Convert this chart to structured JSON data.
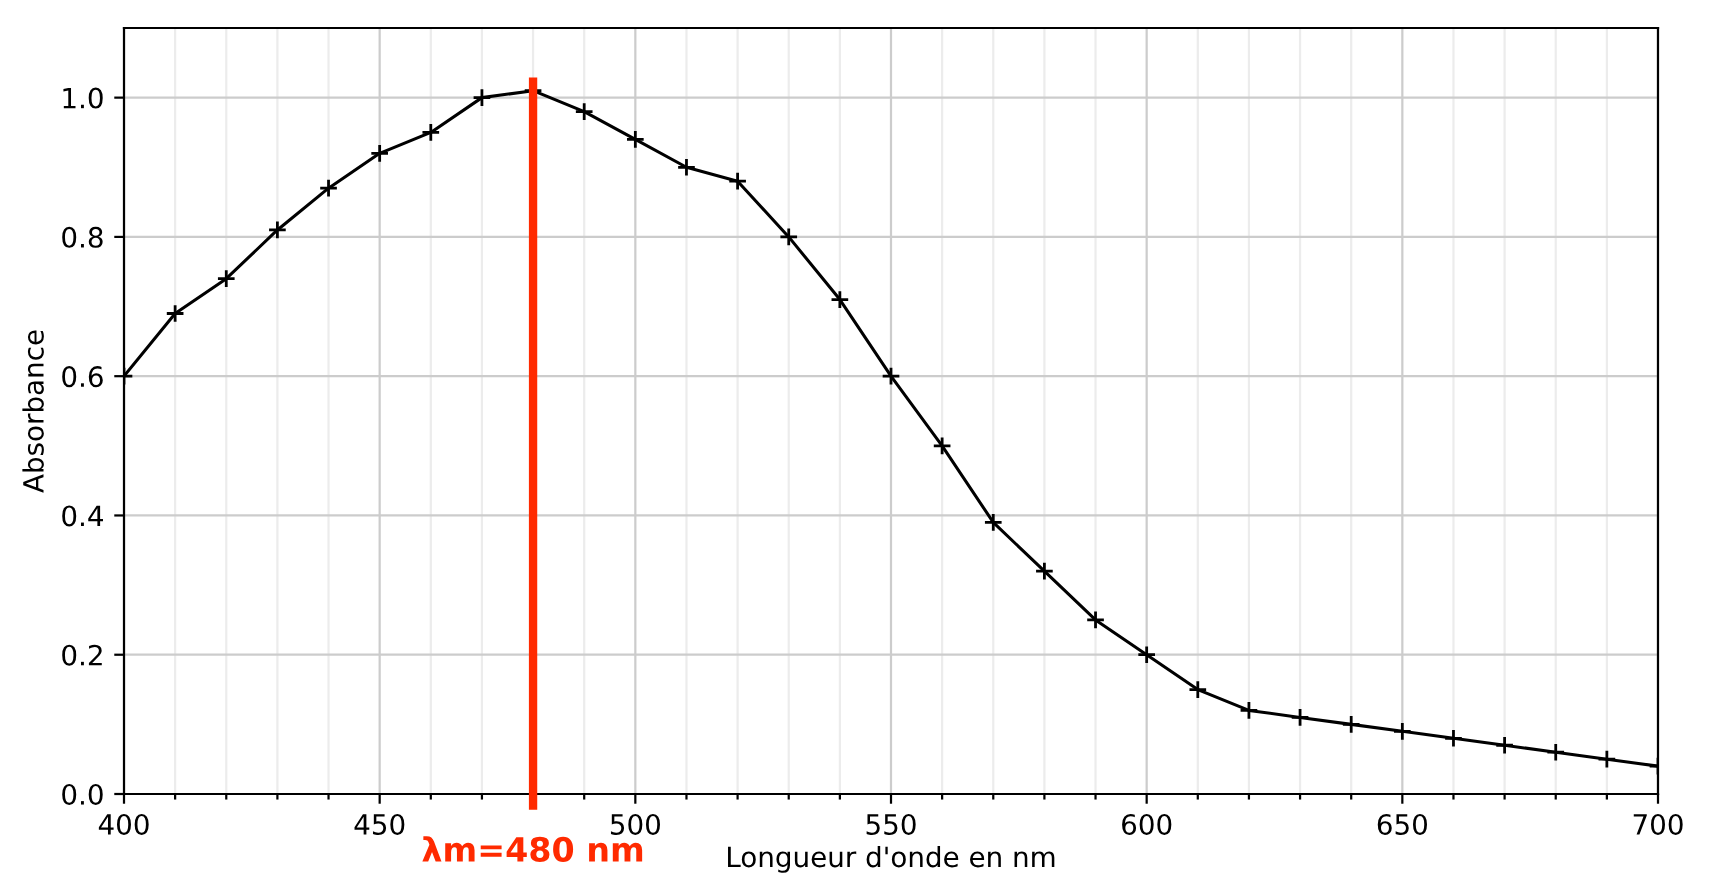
{
  "chart_data": {
    "type": "line",
    "xlabel": "Longueur d'onde en nm",
    "ylabel": "Absorbance",
    "x": [
      400,
      410,
      420,
      430,
      440,
      450,
      460,
      470,
      480,
      490,
      500,
      510,
      520,
      530,
      540,
      550,
      560,
      570,
      580,
      590,
      600,
      610,
      620,
      630,
      640,
      650,
      660,
      670,
      680,
      690,
      700
    ],
    "series": [
      {
        "color": "#000000",
        "values": [
          0.6,
          0.69,
          0.74,
          0.81,
          0.87,
          0.92,
          0.95,
          1.0,
          1.01,
          0.98,
          0.94,
          0.9,
          0.88,
          0.8,
          0.71,
          0.6,
          0.5,
          0.39,
          0.32,
          0.25,
          0.2,
          0.15,
          0.12,
          0.11,
          0.1,
          0.09,
          0.08,
          0.07,
          0.06,
          0.05,
          0.04
        ]
      }
    ],
    "xlim": [
      400,
      700
    ],
    "xticks": [
      400,
      {
        "value": 410,
        "label": null
      },
      {
        "value": 420,
        "label": null
      },
      {
        "value": 430,
        "label": null
      },
      {
        "value": 440,
        "label": null
      },
      450,
      {
        "value": 460,
        "label": null
      },
      {
        "value": 470,
        "label": null
      },
      {
        "value": 480,
        "label": null
      },
      {
        "value": 490,
        "label": null
      },
      500,
      {
        "value": 510,
        "label": null
      },
      {
        "value": 520,
        "label": null
      },
      {
        "value": 530,
        "label": null
      },
      {
        "value": 540,
        "label": null
      },
      550,
      {
        "value": 560,
        "label": null
      },
      {
        "value": 570,
        "label": null
      },
      {
        "value": 580,
        "label": null
      },
      {
        "value": 590,
        "label": null
      },
      600,
      {
        "value": 610,
        "label": null
      },
      {
        "value": 620,
        "label": null
      },
      {
        "value": 630,
        "label": null
      },
      {
        "value": 640,
        "label": null
      },
      650,
      {
        "value": 660,
        "label": null
      },
      {
        "value": 670,
        "label": null
      },
      {
        "value": 680,
        "label": null
      },
      {
        "value": 690,
        "label": null
      },
      700
    ],
    "ylim": [
      0,
      1.1
    ],
    "yticks": [
      {
        "value": 0,
        "label": "0.0"
      },
      {
        "value": 0.2,
        "label": "0.2"
      },
      {
        "value": 0.4,
        "label": "0.4"
      },
      {
        "value": 0.6,
        "label": "0.6"
      },
      {
        "value": 0.8,
        "label": "0.8"
      },
      {
        "value": 1.0,
        "label": "1.0"
      }
    ],
    "grid": true,
    "marker": "cross",
    "line_style": "solid",
    "ref_lines": [
      {
        "axis": "x",
        "value": 480,
        "label": "λm=480 nm",
        "color": "#ff2a00"
      }
    ]
  }
}
